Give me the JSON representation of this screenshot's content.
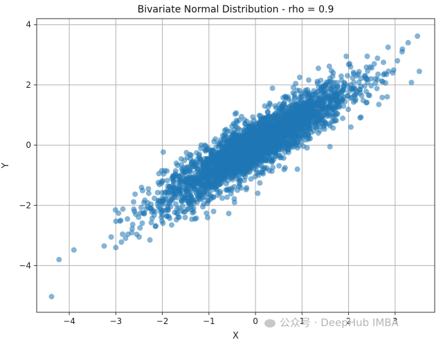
{
  "chart_data": {
    "type": "scatter",
    "title": "Bivariate Normal Distribution - rho = 0.9",
    "xlabel": "X",
    "ylabel": "Y",
    "xlim": [
      -4.7,
      3.85
    ],
    "ylim": [
      -5.55,
      4.2
    ],
    "x_ticks": [
      -4,
      -3,
      -2,
      -1,
      0,
      1,
      2,
      3
    ],
    "y_ticks": [
      -4,
      -2,
      0,
      2,
      4
    ],
    "grid": true,
    "color": "#1f77b4",
    "alpha": 0.55,
    "rho": 0.9,
    "n_bulk_points": 3000,
    "points": [
      {
        "x": -4.38,
        "y": -5.03
      },
      {
        "x": -4.22,
        "y": -3.8
      },
      {
        "x": -3.9,
        "y": -3.48
      },
      {
        "x": -3.25,
        "y": -3.35
      },
      {
        "x": -3.1,
        "y": -3.05
      },
      {
        "x": -3.0,
        "y": -3.4
      },
      {
        "x": -2.88,
        "y": -3.22
      },
      {
        "x": -2.75,
        "y": -2.45
      },
      {
        "x": -2.6,
        "y": -2.2
      },
      {
        "x": -2.5,
        "y": -3.05
      },
      {
        "x": -2.3,
        "y": -1.45
      },
      {
        "x": -2.15,
        "y": -2.7
      },
      {
        "x": -1.95,
        "y": -0.85
      },
      {
        "x": -1.8,
        "y": -2.65
      },
      {
        "x": -1.7,
        "y": -0.6
      },
      {
        "x": -1.4,
        "y": -0.45
      },
      {
        "x": -1.3,
        "y": -2.45
      },
      {
        "x": -0.9,
        "y": -2.2
      },
      {
        "x": -0.65,
        "y": 0.35
      },
      {
        "x": -0.45,
        "y": -1.9
      },
      {
        "x": -0.3,
        "y": 0.95
      },
      {
        "x": 0.05,
        "y": -1.6
      },
      {
        "x": 0.2,
        "y": 1.3
      },
      {
        "x": 0.7,
        "y": 1.6
      },
      {
        "x": 0.9,
        "y": -0.8
      },
      {
        "x": 0.95,
        "y": 2.25
      },
      {
        "x": 1.35,
        "y": 2.55
      },
      {
        "x": 1.6,
        "y": -0.05
      },
      {
        "x": 1.95,
        "y": 2.95
      },
      {
        "x": 2.05,
        "y": 0.6
      },
      {
        "x": 2.4,
        "y": 2.95
      },
      {
        "x": 2.45,
        "y": 1.65
      },
      {
        "x": 2.55,
        "y": 2.7
      },
      {
        "x": 2.65,
        "y": 1.35
      },
      {
        "x": 2.75,
        "y": 2.75
      },
      {
        "x": 2.85,
        "y": 3.25
      },
      {
        "x": 2.95,
        "y": 2.4
      },
      {
        "x": 3.05,
        "y": 2.8
      },
      {
        "x": 3.15,
        "y": 3.1
      },
      {
        "x": 3.28,
        "y": 3.4
      },
      {
        "x": 3.35,
        "y": 2.08
      },
      {
        "x": 3.48,
        "y": 3.62
      },
      {
        "x": 3.52,
        "y": 2.45
      }
    ]
  },
  "watermark": {
    "text": "公众号 · DeepHub IMBA"
  }
}
